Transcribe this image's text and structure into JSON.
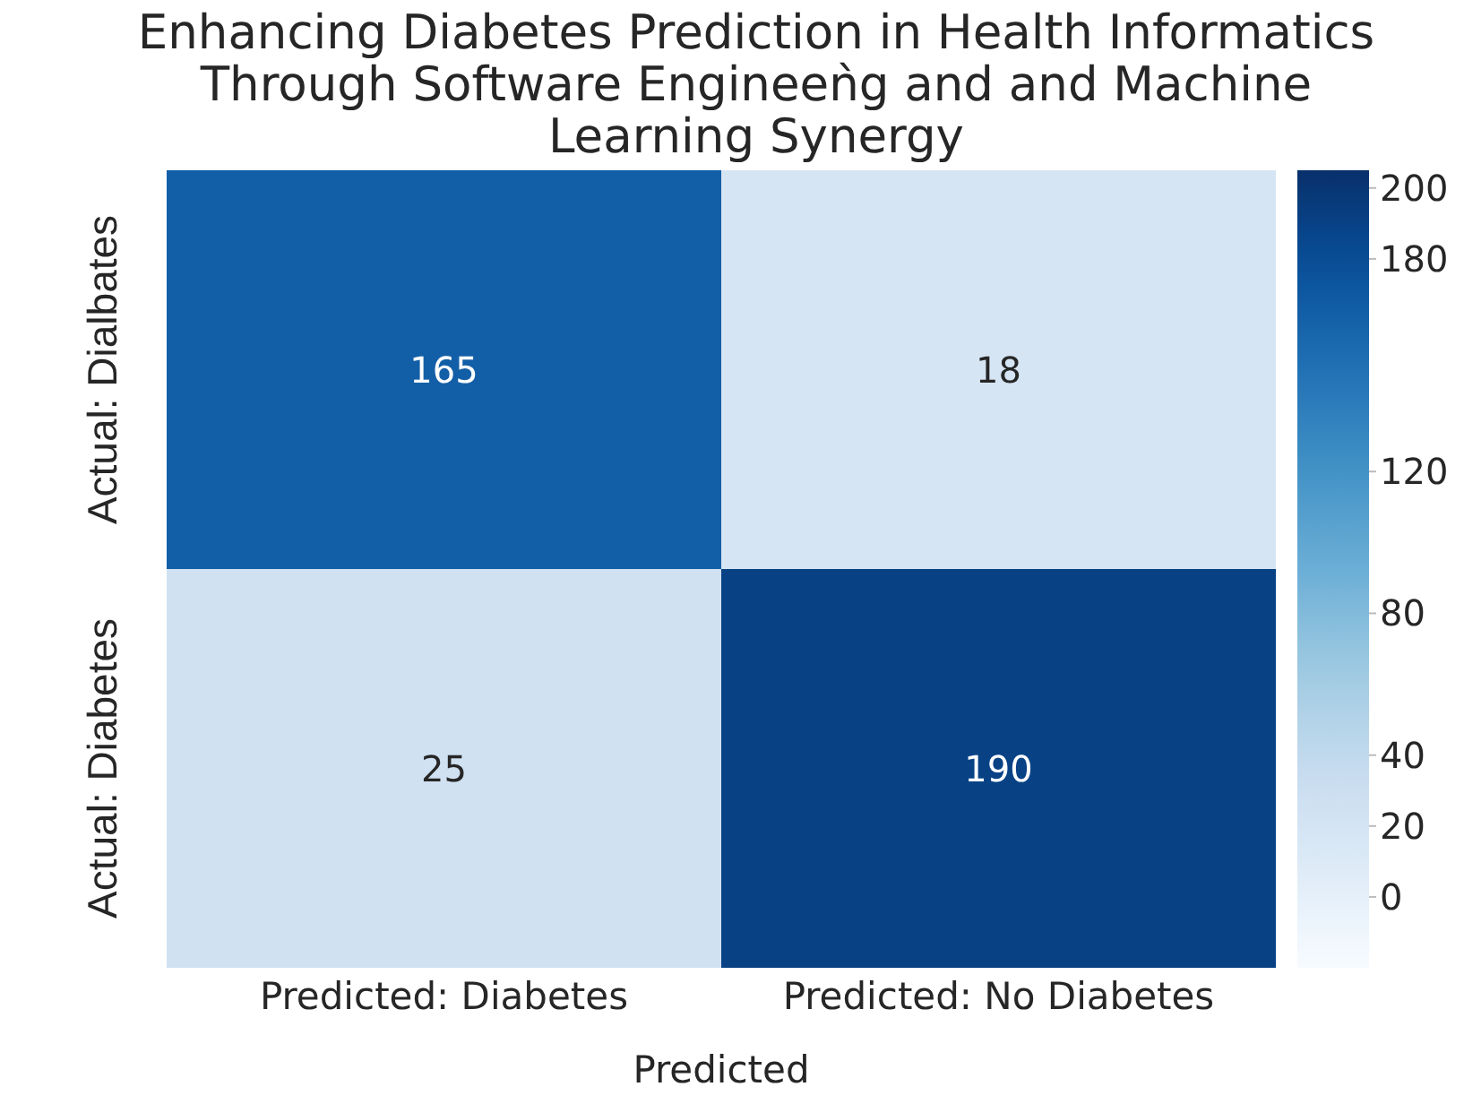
{
  "chart_data": {
    "type": "heatmap",
    "title": "Enhancing Diabetes Prediction in Health Informatics Through Software Engineeǹg and and Machine Learning Synergy",
    "xlabel": "Predicted",
    "categories": [
      "Predicted: Diabetes",
      "Predicted: No Diabetes"
    ],
    "y_categories": [
      "Actual: Dialbates",
      "Actual: Diabetes"
    ],
    "cells": [
      [
        165,
        18
      ],
      [
        25,
        190
      ]
    ],
    "data_labels": true,
    "clim": [
      -20,
      205
    ],
    "cticks": [
      200,
      180,
      120,
      80,
      40,
      20,
      0
    ]
  }
}
